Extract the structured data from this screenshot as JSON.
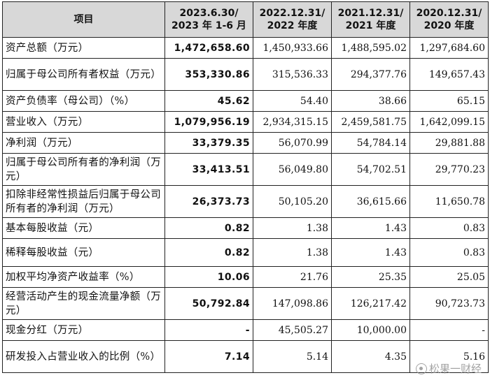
{
  "header": {
    "item": "项目",
    "col1_line1": "2023.6.30/",
    "col1_line2": "2023 年 1-6 月",
    "col2_line1": "2022.12.31/",
    "col2_line2": "2022 年度",
    "col3_line1": "2021.12.31/",
    "col3_line2": "2021 年度",
    "col4_line1": "2020.12.31/",
    "col4_line2": "2020 年度"
  },
  "rows": [
    {
      "label": "资产总额（万元）",
      "v1": "1,472,658.60",
      "v2": "1,450,933.66",
      "v3": "1,488,595.02",
      "v4": "1,297,684.60"
    },
    {
      "label": "归属于母公司所有者权益（万元）",
      "v1": "353,330.86",
      "v2": "315,536.33",
      "v3": "294,377.76",
      "v4": "149,657.43"
    },
    {
      "label": "资产负债率（母公司）（%）",
      "v1": "45.62",
      "v2": "54.40",
      "v3": "38.66",
      "v4": "65.15"
    },
    {
      "label": "营业收入（万元）",
      "v1": "1,079,956.19",
      "v2": "2,934,315.15",
      "v3": "2,459,581.75",
      "v4": "1,642,099.15"
    },
    {
      "label": "净利润（万元）",
      "v1": "33,379.35",
      "v2": "56,070.99",
      "v3": "54,784.14",
      "v4": "29,881.88"
    },
    {
      "label": "归属于母公司所有者的净利润（万元）",
      "v1": "33,413.51",
      "v2": "56,049.80",
      "v3": "54,702.51",
      "v4": "29,770.23"
    },
    {
      "label": "扣除非经常性损益后归属于母公司所有者的净利润（万元）",
      "v1": "26,373.73",
      "v2": "50,105.20",
      "v3": "36,615.66",
      "v4": "11,650.78"
    },
    {
      "label": "基本每股收益（元）",
      "v1": "0.82",
      "v2": "1.38",
      "v3": "1.43",
      "v4": "0.83"
    },
    {
      "label": "稀释每股收益（元）",
      "v1": "0.82",
      "v2": "1.38",
      "v3": "1.43",
      "v4": "0.83"
    },
    {
      "label": "加权平均净资产收益率（%）",
      "v1": "10.06",
      "v2": "21.76",
      "v3": "25.35",
      "v4": "25.05"
    },
    {
      "label": "经营活动产生的现金流量净额（万元）",
      "v1": "50,792.84",
      "v2": "147,098.86",
      "v3": "126,217.42",
      "v4": "90,723.73"
    },
    {
      "label": "现金分红（万元）",
      "v1": "-",
      "v2": "45,505.27",
      "v3": "10,000.00",
      "v4": "-"
    },
    {
      "label": "研发投入占营业收入的比例（%）",
      "v1": "7.14",
      "v2": "5.14",
      "v3": "4.35",
      "v4": "5.16"
    }
  ],
  "watermark": "松果一财经"
}
